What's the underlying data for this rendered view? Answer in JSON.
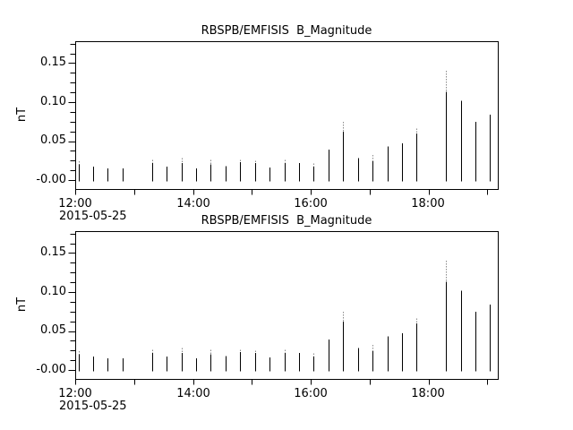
{
  "window": {
    "background_color": "#ffffff",
    "foreground_color": "#000000"
  },
  "chart_data": {
    "type": "bar",
    "style": "vertical-spike-series, two identical stacked panels",
    "title": "RBSPB/EMFISIS  B_Magnitude",
    "ylabel": "nT",
    "date_label": "2015-05-25",
    "ytick_labels": [
      "0.15",
      "0.10",
      "0.05",
      "-0.00"
    ],
    "ytick_values": [
      0.15,
      0.1,
      0.05,
      0.0
    ],
    "y_major_step": 0.05,
    "y_minor_step": 0.0125,
    "ylim": [
      -0.0115,
      0.178
    ],
    "xtick_labels": [
      "12:00",
      "14:00",
      "16:00",
      "18:00"
    ],
    "xticks_all_hours": [
      "12:00",
      "13:00",
      "14:00",
      "15:00",
      "16:00",
      "17:00",
      "18:00",
      "19:00"
    ],
    "x_range": [
      "12:00",
      "19:11"
    ],
    "grid": "off",
    "legend": "none",
    "spike_base_value": -0.002,
    "spikes": [
      {
        "t": "12:03",
        "v": 0.02,
        "tip": 0.004
      },
      {
        "t": "12:18",
        "v": 0.017,
        "tip": 0
      },
      {
        "t": "12:33",
        "v": 0.015,
        "tip": 0
      },
      {
        "t": "12:48",
        "v": 0.015,
        "tip": 0
      },
      {
        "t": "13:18",
        "v": 0.022,
        "tip": 0.004
      },
      {
        "t": "13:33",
        "v": 0.017,
        "tip": 0
      },
      {
        "t": "13:48",
        "v": 0.022,
        "tip": 0.006
      },
      {
        "t": "14:03",
        "v": 0.015,
        "tip": 0
      },
      {
        "t": "14:18",
        "v": 0.02,
        "tip": 0.006
      },
      {
        "t": "14:33",
        "v": 0.018,
        "tip": 0
      },
      {
        "t": "14:48",
        "v": 0.023,
        "tip": 0.003
      },
      {
        "t": "15:03",
        "v": 0.022,
        "tip": 0.003
      },
      {
        "t": "15:18",
        "v": 0.016,
        "tip": 0
      },
      {
        "t": "15:33",
        "v": 0.022,
        "tip": 0.004
      },
      {
        "t": "15:48",
        "v": 0.022,
        "tip": 0
      },
      {
        "t": "16:03",
        "v": 0.017,
        "tip": 0.004
      },
      {
        "t": "16:18",
        "v": 0.039,
        "tip": 0
      },
      {
        "t": "16:33",
        "v": 0.062,
        "tip": 0.013
      },
      {
        "t": "16:48",
        "v": 0.028,
        "tip": 0
      },
      {
        "t": "17:03",
        "v": 0.024,
        "tip": 0.008
      },
      {
        "t": "17:18",
        "v": 0.043,
        "tip": 0
      },
      {
        "t": "17:33",
        "v": 0.047,
        "tip": 0
      },
      {
        "t": "17:48",
        "v": 0.06,
        "tip": 0.006
      },
      {
        "t": "18:18",
        "v": 0.113,
        "tip": 0.027
      },
      {
        "t": "18:33",
        "v": 0.102,
        "tip": 0
      },
      {
        "t": "18:48",
        "v": 0.075,
        "tip": 0
      },
      {
        "t": "19:03",
        "v": 0.084,
        "tip": 0
      }
    ],
    "colors": {
      "spike": "#000000",
      "spike_tip": "#8a8a8a",
      "frame": "#000000",
      "text": "#000000",
      "background": "#ffffff"
    },
    "panels": [
      "top",
      "bottom"
    ]
  }
}
